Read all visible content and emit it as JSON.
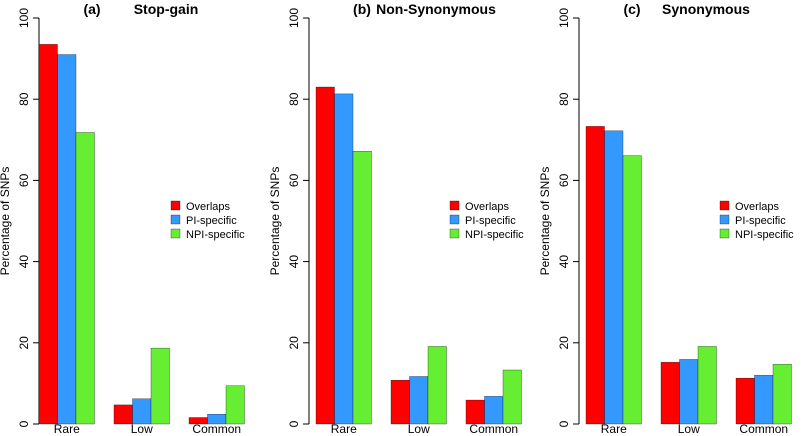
{
  "chart_data": [
    {
      "type": "bar",
      "panel_label": "(a)",
      "title": "Stop-gain",
      "ylabel": "Percentage of SNPs",
      "xlabel": "",
      "ylim": [
        0,
        100
      ],
      "yticks": [
        "0",
        "20",
        "40",
        "60",
        "80",
        "100"
      ],
      "categories": [
        "Rare",
        "Low",
        "Common"
      ],
      "series": [
        {
          "name": "Overlaps",
          "color": "#ff0000",
          "values": [
            93.5,
            4.7,
            1.6
          ]
        },
        {
          "name": "PI-specific",
          "color": "#3399ff",
          "values": [
            91.0,
            6.2,
            2.4
          ]
        },
        {
          "name": "NPI-specific",
          "color": "#66ee33",
          "values": [
            71.8,
            18.7,
            9.4
          ]
        }
      ],
      "legend_position": "center-right"
    },
    {
      "type": "bar",
      "panel_label": "(b)",
      "title": "Non-Synonymous",
      "ylabel": "Percentage of SNPs",
      "xlabel": "",
      "ylim": [
        0,
        100
      ],
      "yticks": [
        "0",
        "20",
        "40",
        "60",
        "80",
        "100"
      ],
      "categories": [
        "Rare",
        "Low",
        "Common"
      ],
      "series": [
        {
          "name": "Overlaps",
          "color": "#ff0000",
          "values": [
            83.0,
            10.8,
            5.9
          ]
        },
        {
          "name": "PI-specific",
          "color": "#3399ff",
          "values": [
            81.3,
            11.7,
            6.8
          ]
        },
        {
          "name": "NPI-specific",
          "color": "#66ee33",
          "values": [
            67.2,
            19.1,
            13.3
          ]
        }
      ],
      "legend_position": "center-right"
    },
    {
      "type": "bar",
      "panel_label": "(c)",
      "title": "Synonymous",
      "ylabel": "Percentage of SNPs",
      "xlabel": "",
      "ylim": [
        0,
        100
      ],
      "yticks": [
        "0",
        "20",
        "40",
        "60",
        "80",
        "100"
      ],
      "categories": [
        "Rare",
        "Low",
        "Common"
      ],
      "series": [
        {
          "name": "Overlaps",
          "color": "#ff0000",
          "values": [
            73.3,
            15.2,
            11.3
          ]
        },
        {
          "name": "PI-specific",
          "color": "#3399ff",
          "values": [
            72.2,
            15.9,
            12.0
          ]
        },
        {
          "name": "NPI-specific",
          "color": "#66ee33",
          "values": [
            66.1,
            19.1,
            14.7
          ]
        }
      ],
      "legend_position": "center-right"
    }
  ]
}
